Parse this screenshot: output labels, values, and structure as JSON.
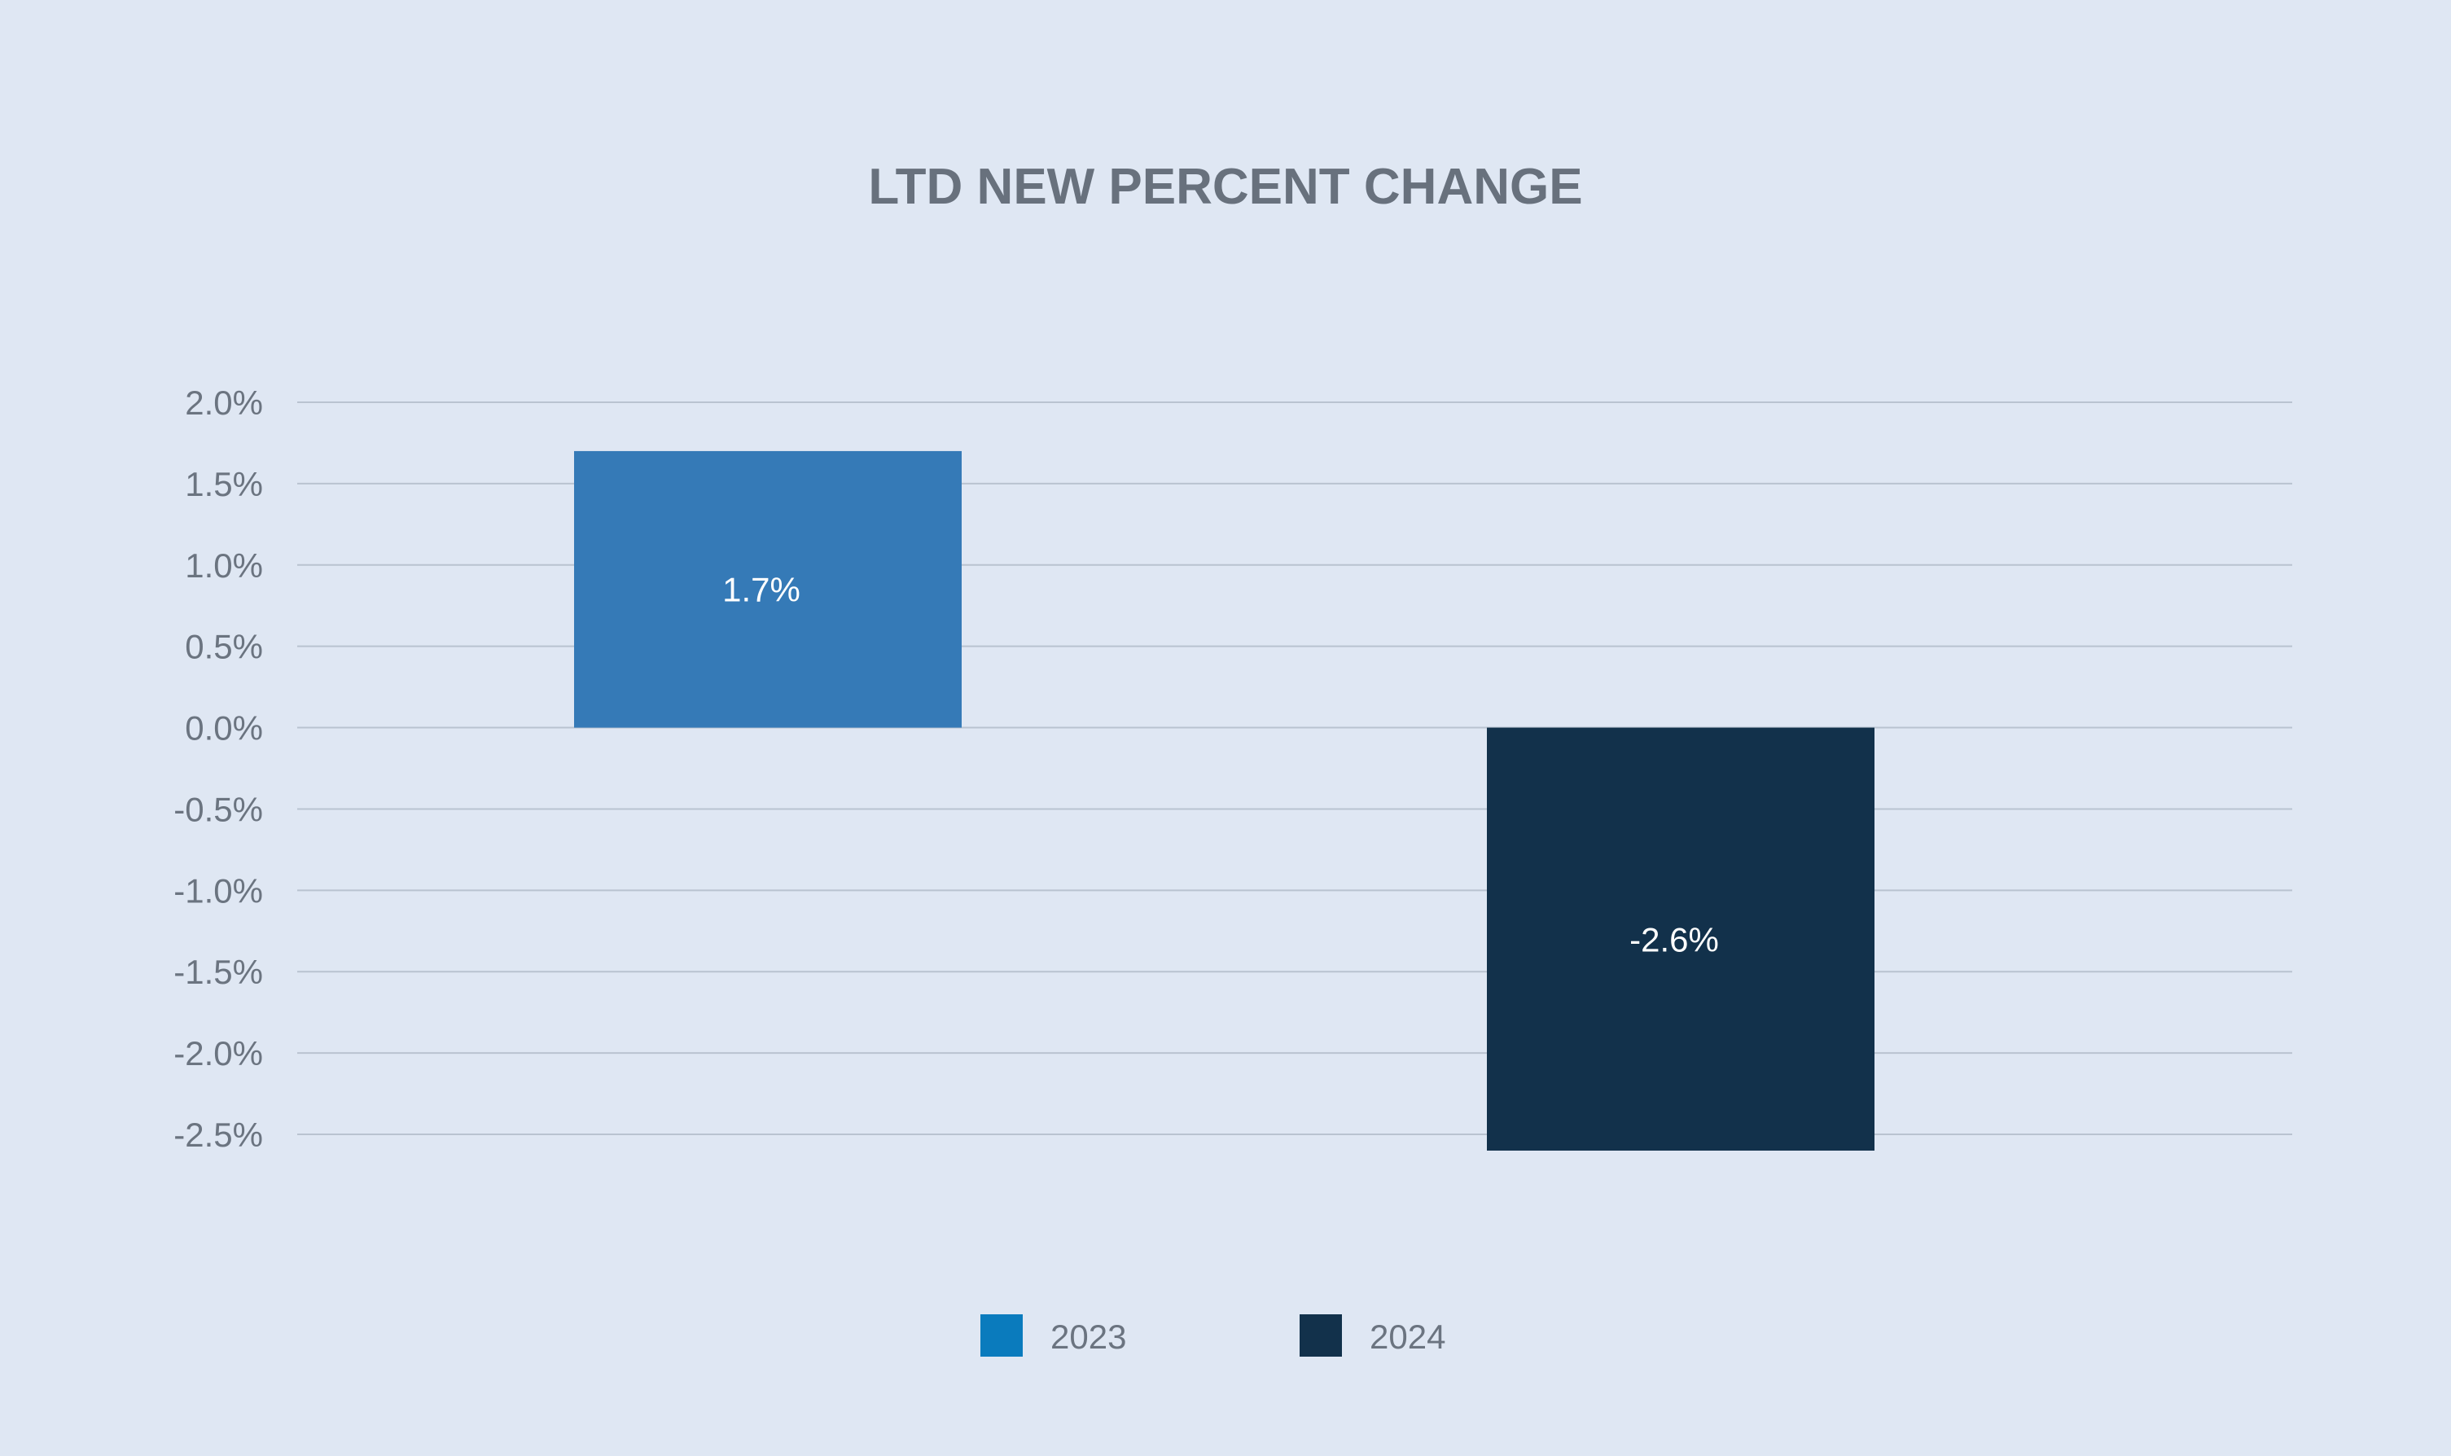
{
  "chart_data": {
    "type": "bar",
    "title": "LTD NEW PERCENT CHANGE",
    "xlabel": "",
    "ylabel": "",
    "categories": [
      "2023",
      "2024"
    ],
    "values": [
      1.7,
      -2.6
    ],
    "value_labels": [
      "1.7%",
      "-2.6%"
    ],
    "ylim": [
      -2.5,
      2.0
    ],
    "yticks": [
      2.0,
      1.5,
      1.0,
      0.5,
      0.0,
      -0.5,
      -1.0,
      -1.5,
      -2.0,
      -2.5
    ],
    "ytick_labels": [
      "2.0%",
      "1.5%",
      "1.0%",
      "0.5%",
      "0.0%",
      "-0.5%",
      "-1.0%",
      "-1.5%",
      "-2.0%",
      "-2.5%"
    ],
    "grid": true,
    "legend_position": "bottom-center",
    "legend": [
      {
        "name": "2023",
        "swatch_color": "#0a7bbd"
      },
      {
        "name": "2024",
        "swatch_color": "#12314b"
      }
    ],
    "bar_colors": [
      "#357ab7",
      "#12314b"
    ],
    "background_color": "#dfe7f3"
  }
}
